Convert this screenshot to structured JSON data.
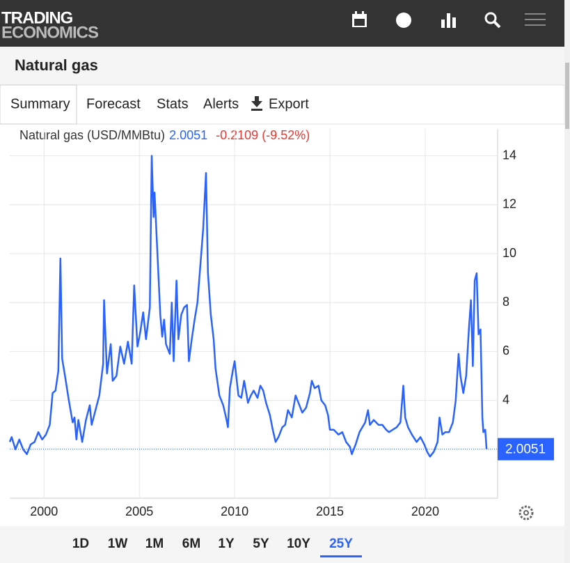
{
  "header": {
    "logo_top": "TRADING",
    "logo_bottom": "ECONOMICS"
  },
  "page_title": "Natural gas",
  "tabs": [
    "Summary",
    "Forecast",
    "Stats",
    "Alerts",
    "Export"
  ],
  "quote": {
    "name": "Natural gas (USD/MMBtu)",
    "change": "-0.2109",
    "change_percent": "(-9.52%)"
  },
  "ranges": [
    "1D",
    "1W",
    "1M",
    "6M",
    "1Y",
    "5Y",
    "10Y",
    "25Y"
  ],
  "chart_data": {
    "type": "line",
    "color": "#2962ff",
    "x": [
      1998.2,
      1998.3,
      1998.5,
      1998.7,
      1998.9,
      1999.1,
      1999.3,
      1999.5,
      1999.7,
      1999.9,
      2000.1,
      2000.3,
      2000.45,
      2000.6,
      2000.75,
      2000.86,
      2000.95,
      2001.1,
      2001.3,
      2001.5,
      2001.6,
      2001.7,
      2001.8,
      2002.0,
      2002.2,
      2002.4,
      2002.5,
      2002.7,
      2002.9,
      2003.1,
      2003.15,
      2003.3,
      2003.5,
      2003.6,
      2003.8,
      2004.0,
      2004.2,
      2004.4,
      2004.6,
      2004.73,
      2004.9,
      2005.05,
      2005.2,
      2005.35,
      2005.55,
      2005.65,
      2005.75,
      2005.8,
      2005.95,
      2006.1,
      2006.2,
      2006.3,
      2006.4,
      2006.6,
      2006.7,
      2006.8,
      2006.95,
      2007.05,
      2007.2,
      2007.35,
      2007.5,
      2007.6,
      2007.75,
      2007.9,
      2008.05,
      2008.2,
      2008.35,
      2008.5,
      2008.6,
      2008.75,
      2008.9,
      2009.0,
      2009.2,
      2009.4,
      2009.55,
      2009.65,
      2009.75,
      2009.9,
      2010.0,
      2010.2,
      2010.35,
      2010.5,
      2010.7,
      2010.85,
      2011.0,
      2011.2,
      2011.35,
      2011.5,
      2011.65,
      2011.85,
      2012.0,
      2012.15,
      2012.3,
      2012.5,
      2012.65,
      2012.8,
      2013.0,
      2013.2,
      2013.4,
      2013.55,
      2013.75,
      2013.95,
      2014.05,
      2014.2,
      2014.4,
      2014.55,
      2014.75,
      2014.9,
      2015.0,
      2015.2,
      2015.45,
      2015.65,
      2015.85,
      2016.05,
      2016.15,
      2016.35,
      2016.55,
      2016.7,
      2016.85,
      2017.0,
      2017.1,
      2017.3,
      2017.55,
      2017.75,
      2017.95,
      2018.1,
      2018.3,
      2018.5,
      2018.7,
      2018.85,
      2018.95,
      2019.1,
      2019.3,
      2019.55,
      2019.75,
      2019.95,
      2020.1,
      2020.25,
      2020.45,
      2020.55,
      2020.65,
      2020.75,
      2020.9,
      2021.05,
      2021.25,
      2021.45,
      2021.6,
      2021.75,
      2021.85,
      2022.0,
      2022.15,
      2022.3,
      2022.4,
      2022.5,
      2022.6,
      2022.7,
      2022.8,
      2022.9,
      2023.0,
      2023.05,
      2023.15,
      2023.22
    ],
    "values": [
      2.3,
      2.5,
      2.0,
      2.4,
      2.0,
      1.8,
      2.2,
      2.3,
      2.7,
      2.4,
      2.6,
      3.0,
      4.3,
      4.4,
      5.2,
      9.8,
      5.7,
      5.0,
      4.0,
      3.1,
      3.3,
      2.4,
      3.2,
      2.3,
      3.2,
      3.8,
      3.0,
      3.6,
      4.2,
      5.5,
      8.1,
      5.1,
      6.3,
      4.8,
      5.0,
      6.2,
      5.5,
      6.4,
      5.5,
      8.7,
      6.2,
      6.8,
      7.6,
      6.5,
      7.8,
      14.0,
      11.5,
      12.5,
      10.0,
      7.5,
      6.6,
      7.3,
      6.3,
      5.9,
      8.0,
      5.6,
      8.9,
      6.5,
      7.5,
      7.8,
      7.9,
      5.6,
      6.5,
      7.3,
      8.0,
      9.5,
      11.0,
      13.3,
      9.2,
      7.5,
      6.5,
      5.3,
      4.2,
      3.8,
      3.3,
      2.9,
      4.5,
      5.2,
      5.6,
      4.2,
      4.1,
      4.8,
      3.9,
      4.2,
      4.4,
      4.1,
      4.6,
      4.4,
      3.9,
      3.4,
      2.8,
      2.3,
      2.5,
      2.9,
      3.0,
      3.6,
      3.3,
      4.2,
      3.8,
      3.5,
      3.7,
      4.3,
      4.8,
      4.5,
      4.6,
      4.0,
      3.8,
      3.4,
      2.8,
      2.8,
      2.6,
      2.7,
      2.3,
      2.1,
      1.8,
      2.2,
      2.7,
      2.9,
      3.1,
      3.6,
      3.0,
      3.2,
      3.0,
      3.0,
      2.8,
      2.7,
      2.8,
      2.9,
      3.1,
      4.6,
      3.3,
      2.9,
      2.6,
      2.3,
      2.5,
      2.2,
      1.9,
      1.7,
      1.9,
      2.1,
      2.3,
      3.3,
      2.6,
      2.7,
      2.7,
      3.1,
      4.0,
      5.9,
      5.0,
      4.3,
      5.0,
      7.0,
      8.1,
      5.4,
      8.9,
      9.2,
      6.7,
      6.9,
      3.3,
      2.7,
      2.8,
      2.0051
    ],
    "last_value": 2.0051,
    "xlim": [
      1998.2,
      2023.8
    ],
    "xticks": [
      2000,
      2005,
      2010,
      2015,
      2020
    ],
    "ylim": [
      0,
      15.1
    ],
    "yticks": [
      4,
      6,
      8,
      10,
      12,
      14
    ],
    "grid": true
  }
}
